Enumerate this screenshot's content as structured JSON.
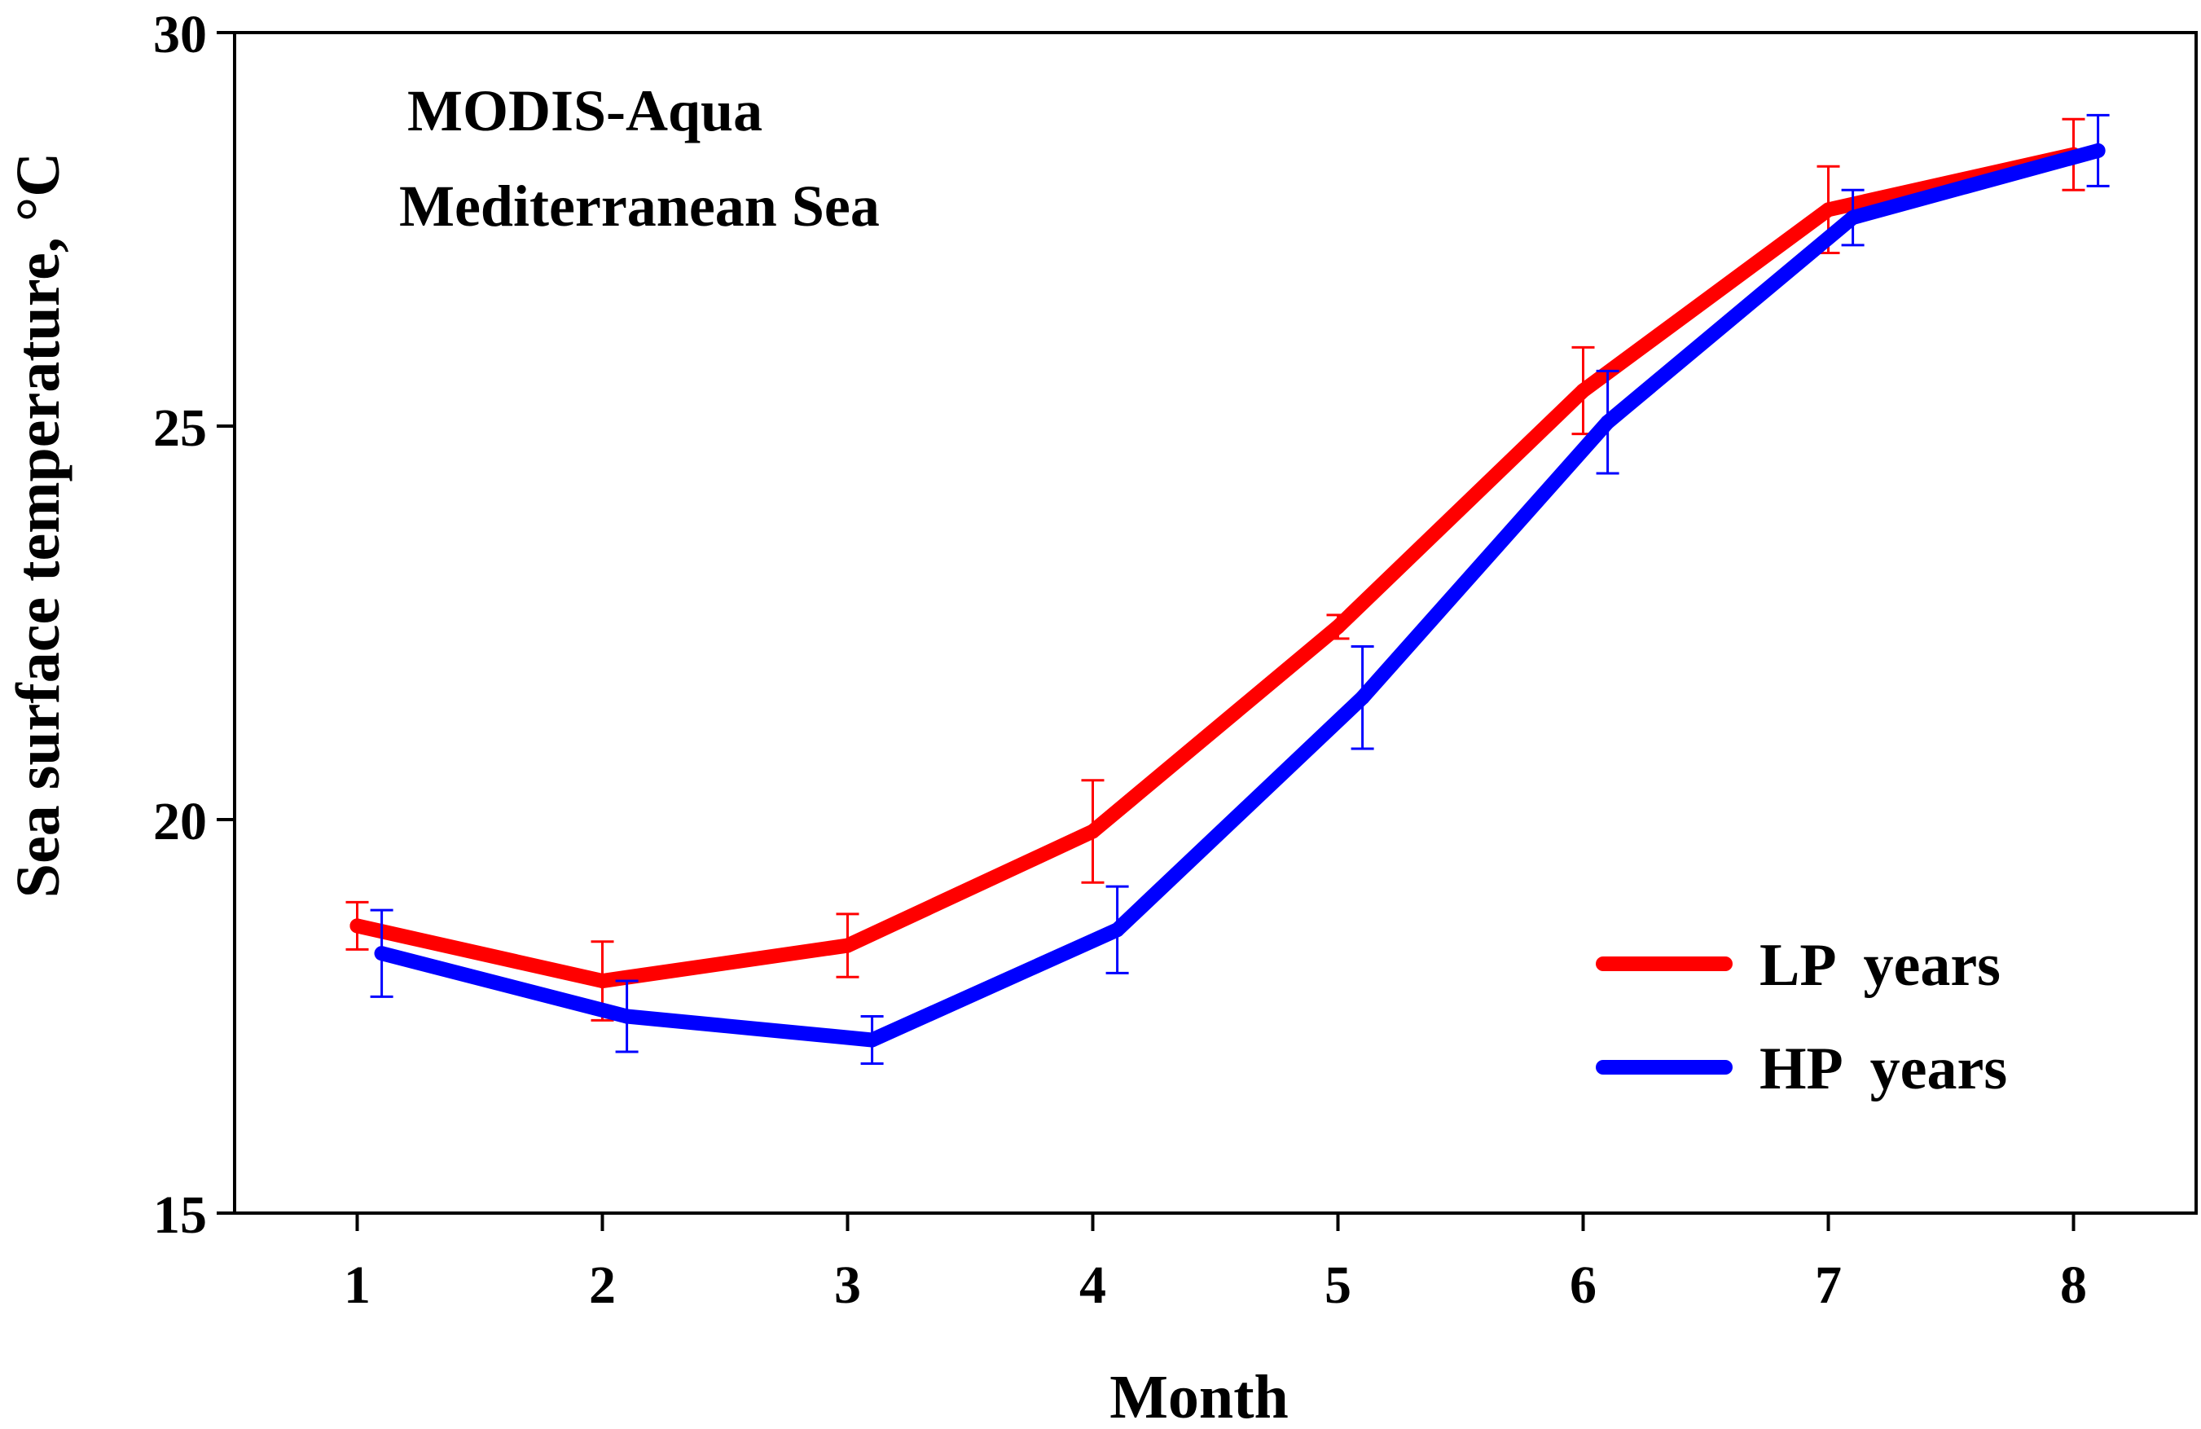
{
  "chart_data": {
    "type": "line",
    "title": "MODIS-Aqua",
    "subtitle": "Mediterranean Sea",
    "xlabel": "Month",
    "ylabel": "Sea  surface  temperature,",
    "ylabel_unit": "°C",
    "xlim": [
      0.5,
      8.5
    ],
    "ylim": [
      15,
      30
    ],
    "x_ticks": [
      1,
      2,
      3,
      4,
      5,
      6,
      7,
      8
    ],
    "y_ticks": [
      15,
      20,
      25,
      30
    ],
    "grid": false,
    "legend_position": "bottom-right",
    "series": [
      {
        "name": "LP  years",
        "color": "#ff0000",
        "x": [
          1,
          2,
          3,
          4,
          5,
          6,
          7,
          8
        ],
        "values": [
          18.65,
          17.95,
          18.4,
          19.85,
          22.45,
          25.45,
          27.75,
          28.45
        ],
        "error": [
          0.3,
          0.5,
          0.4,
          0.65,
          0.15,
          0.55,
          0.55,
          0.45
        ]
      },
      {
        "name": "HP  years",
        "color": "#0000ff",
        "x": [
          1.1,
          2.1,
          3.1,
          4.1,
          5.1,
          6.1,
          7.1,
          8.1
        ],
        "values": [
          18.3,
          17.5,
          17.2,
          18.6,
          21.55,
          25.05,
          27.65,
          28.5
        ],
        "error": [
          0.55,
          0.45,
          0.3,
          0.55,
          0.65,
          0.65,
          0.35,
          0.45
        ]
      }
    ]
  }
}
